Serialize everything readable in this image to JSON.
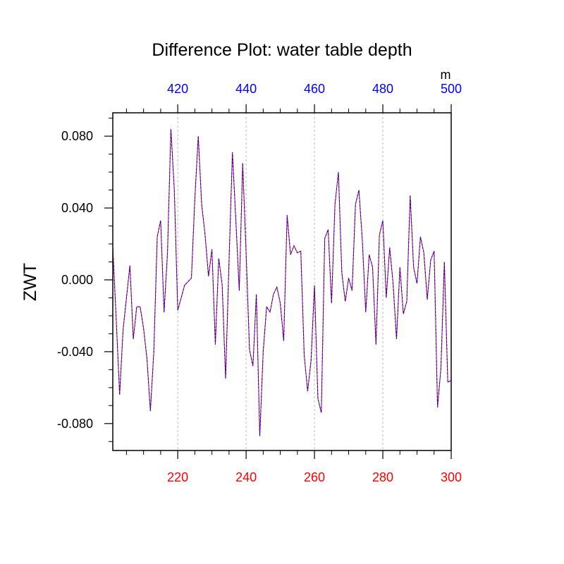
{
  "chart_data": {
    "type": "line",
    "title": "Difference Plot: water table depth",
    "ylabel": "ZWT",
    "bottom_axis": {
      "range": [
        201,
        300
      ],
      "ticks": [
        220,
        240,
        260,
        280,
        300
      ],
      "tick_labels": [
        "220",
        "240",
        "260",
        "280",
        "300"
      ],
      "color": "#ff0000"
    },
    "top_axis": {
      "range": [
        401,
        500
      ],
      "ticks": [
        420,
        440,
        460,
        480,
        500
      ],
      "tick_labels": [
        "420",
        "440",
        "460",
        "480",
        "500"
      ],
      "unit": "m",
      "color": "#0000ff"
    },
    "y_axis": {
      "range": [
        -0.095,
        0.093
      ],
      "ticks": [
        -0.08,
        -0.04,
        0.0,
        0.04,
        0.08
      ],
      "tick_labels": [
        "-0.080",
        "-0.040",
        "0.000",
        "0.040",
        "0.080"
      ]
    },
    "grid": "vertical-dotted",
    "series": [
      {
        "color": "#ff0000",
        "style": "solid",
        "x": [
          201,
          202,
          203,
          204,
          205,
          206,
          207,
          208,
          209,
          210,
          211,
          212,
          213,
          214,
          215,
          216,
          217,
          218,
          219,
          220,
          221,
          222,
          223,
          224,
          225,
          226,
          227,
          228,
          229,
          230,
          231,
          232,
          233,
          234,
          235,
          236,
          237,
          238,
          239,
          240,
          241,
          242,
          243,
          244,
          245,
          246,
          247,
          248,
          249,
          250,
          251,
          252,
          253,
          254,
          255,
          256,
          257,
          258,
          259,
          260,
          261,
          262,
          263,
          264,
          265,
          266,
          267,
          268,
          269,
          270,
          271,
          272,
          273,
          274,
          275,
          276,
          277,
          278,
          279,
          280,
          281,
          282,
          283,
          284,
          285,
          286,
          287,
          288,
          289,
          290,
          291,
          292,
          293,
          294,
          295,
          296,
          297,
          298,
          299,
          300
        ],
        "values": [
          0.018,
          -0.022,
          -0.064,
          -0.028,
          -0.01,
          0.008,
          -0.033,
          -0.015,
          -0.015,
          -0.027,
          -0.044,
          -0.073,
          -0.04,
          0.024,
          0.033,
          -0.018,
          0.015,
          0.084,
          0.05,
          -0.017,
          -0.01,
          -0.003,
          -0.001,
          0.001,
          0.045,
          0.08,
          0.042,
          0.025,
          0.002,
          0.017,
          -0.036,
          0.012,
          -0.003,
          -0.055,
          0.01,
          0.071,
          0.033,
          -0.006,
          0.065,
          0.015,
          -0.039,
          -0.048,
          -0.008,
          -0.087,
          -0.04,
          -0.015,
          -0.018,
          -0.008,
          -0.004,
          -0.013,
          -0.034,
          0.036,
          0.014,
          0.019,
          0.015,
          0.016,
          -0.042,
          -0.062,
          -0.045,
          -0.003,
          -0.066,
          -0.074,
          0.023,
          0.028,
          -0.013,
          0.042,
          0.06,
          0.004,
          -0.012,
          0.001,
          -0.006,
          0.042,
          0.05,
          0.022,
          -0.018,
          0.014,
          0.007,
          -0.036,
          0.025,
          0.033,
          -0.01,
          0.018,
          -0.002,
          -0.033,
          0.007,
          -0.019,
          -0.012,
          0.047,
          0.007,
          -0.002,
          0.024,
          0.015,
          -0.011,
          0.011,
          0.016,
          -0.071,
          -0.049,
          0.01,
          -0.057,
          -0.056
        ]
      },
      {
        "color": "#0000ff",
        "style": "dashed",
        "x": [
          201,
          202,
          203,
          204,
          205,
          206,
          207,
          208,
          209,
          210,
          211,
          212,
          213,
          214,
          215,
          216,
          217,
          218,
          219,
          220,
          221,
          222,
          223,
          224,
          225,
          226,
          227,
          228,
          229,
          230,
          231,
          232,
          233,
          234,
          235,
          236,
          237,
          238,
          239,
          240,
          241,
          242,
          243,
          244,
          245,
          246,
          247,
          248,
          249,
          250,
          251,
          252,
          253,
          254,
          255,
          256,
          257,
          258,
          259,
          260,
          261,
          262,
          263,
          264,
          265,
          266,
          267,
          268,
          269,
          270,
          271,
          272,
          273,
          274,
          275,
          276,
          277,
          278,
          279,
          280,
          281,
          282,
          283,
          284,
          285,
          286,
          287,
          288,
          289,
          290,
          291,
          292,
          293,
          294,
          295,
          296,
          297,
          298,
          299,
          300
        ],
        "values": [
          0.018,
          -0.022,
          -0.064,
          -0.028,
          -0.01,
          0.008,
          -0.033,
          -0.015,
          -0.015,
          -0.027,
          -0.044,
          -0.073,
          -0.04,
          0.024,
          0.033,
          -0.018,
          0.015,
          0.084,
          0.05,
          -0.017,
          -0.01,
          -0.003,
          -0.001,
          0.001,
          0.045,
          0.08,
          0.042,
          0.025,
          0.002,
          0.017,
          -0.036,
          0.012,
          -0.003,
          -0.055,
          0.01,
          0.071,
          0.033,
          -0.006,
          0.065,
          0.015,
          -0.039,
          -0.048,
          -0.008,
          -0.087,
          -0.04,
          -0.015,
          -0.018,
          -0.008,
          -0.004,
          -0.013,
          -0.034,
          0.036,
          0.014,
          0.019,
          0.015,
          0.016,
          -0.042,
          -0.062,
          -0.045,
          -0.003,
          -0.066,
          -0.074,
          0.023,
          0.028,
          -0.013,
          0.042,
          0.06,
          0.004,
          -0.012,
          0.001,
          -0.006,
          0.042,
          0.05,
          0.022,
          -0.018,
          0.014,
          0.007,
          -0.036,
          0.025,
          0.033,
          -0.01,
          0.018,
          -0.002,
          -0.033,
          0.007,
          -0.019,
          -0.012,
          0.047,
          0.007,
          -0.002,
          0.024,
          0.015,
          -0.011,
          0.011,
          0.016,
          -0.071,
          -0.049,
          0.01,
          -0.057,
          -0.056
        ]
      }
    ]
  }
}
